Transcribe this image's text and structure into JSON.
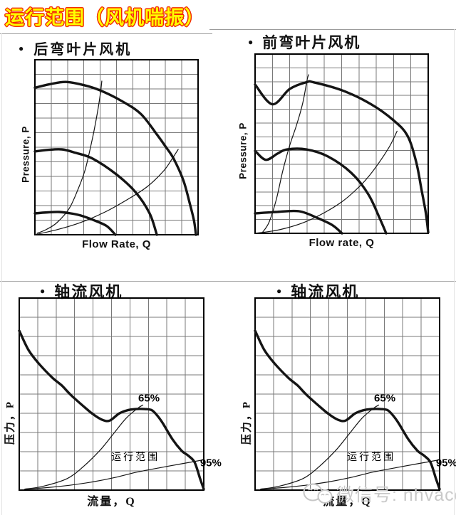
{
  "page": {
    "title": "运行范围（风机喘振）",
    "watermark": {
      "icon": "wechat-face-icon",
      "text": "微信号: nhvacd"
    }
  },
  "colors": {
    "title_fill": "#ffff00",
    "title_outline": "#f22b00",
    "curve": "#141414",
    "grid_line": "#787878",
    "watermark": "#c9c9c9",
    "divider": "#9c9c9c"
  },
  "chart_data": [
    {
      "type": "line",
      "bullet": "●",
      "title": "后弯叶片风机",
      "xlabel": "Flow Rate, Q",
      "ylabel": "Pressure, P",
      "x_range": [
        0,
        100
      ],
      "y_range": [
        0,
        100
      ],
      "grid": {
        "cols": 10,
        "rows": 12,
        "on": true
      },
      "series": [
        {
          "name": "fan-curve-high-speed",
          "stroke": "thick",
          "points": [
            [
              0,
              84
            ],
            [
              9,
              86
            ],
            [
              19,
              87.3
            ],
            [
              30,
              85.5
            ],
            [
              40,
              82.5
            ],
            [
              53,
              76.5
            ],
            [
              65,
              69
            ],
            [
              75,
              57
            ],
            [
              80,
              50.5
            ],
            [
              85,
              43.5
            ],
            [
              91,
              31
            ],
            [
              95,
              17.5
            ],
            [
              97.5,
              8
            ],
            [
              98.7,
              0
            ]
          ]
        },
        {
          "name": "fan-curve-mid-speed",
          "stroke": "thick",
          "points": [
            [
              0,
              47.6
            ],
            [
              8,
              48.5
            ],
            [
              16.5,
              48.8
            ],
            [
              25,
              46.8
            ],
            [
              35.4,
              43.5
            ],
            [
              49.8,
              34.6
            ],
            [
              61.6,
              24.4
            ],
            [
              70.3,
              12.2
            ],
            [
              74.7,
              0
            ]
          ]
        },
        {
          "name": "fan-curve-low-speed",
          "stroke": "thick",
          "points": [
            [
              0,
              12.2
            ],
            [
              8,
              12.8
            ],
            [
              14.9,
              13
            ],
            [
              22,
              12.2
            ],
            [
              28,
              11
            ],
            [
              36.7,
              8.1
            ],
            [
              44.1,
              4.9
            ],
            [
              49.3,
              0
            ]
          ]
        },
        {
          "name": "surge-line",
          "stroke": "thin",
          "points": [
            [
              1.3,
              0.8
            ],
            [
              7,
              3
            ],
            [
              13.5,
              6.9
            ],
            [
              21,
              15
            ],
            [
              26.6,
              26.4
            ],
            [
              31,
              37.8
            ],
            [
              35.4,
              55.7
            ],
            [
              38.4,
              70.3
            ],
            [
              40.2,
              81.3
            ],
            [
              41,
              87.8
            ]
          ]
        },
        {
          "name": "system-curve",
          "stroke": "thin",
          "points": [
            [
              0,
              0
            ],
            [
              14,
              3
            ],
            [
              28,
              7
            ],
            [
              43,
              13
            ],
            [
              57,
              20.3
            ],
            [
              69,
              27.6
            ],
            [
              79,
              36.6
            ],
            [
              84.5,
              44
            ],
            [
              87.8,
              48.8
            ]
          ]
        }
      ],
      "annotations": []
    },
    {
      "type": "line",
      "bullet": "●",
      "title": "前弯叶片风机",
      "xlabel": "Flow rate, Q",
      "ylabel": "Pressure, P",
      "x_range": [
        0,
        100
      ],
      "y_range": [
        0,
        100
      ],
      "grid": {
        "cols": 10,
        "rows": 13,
        "on": true
      },
      "series": [
        {
          "name": "fan-curve-high-speed",
          "stroke": "thick",
          "points": [
            [
              0,
              83
            ],
            [
              10,
              72
            ],
            [
              20,
              80.5
            ],
            [
              29.6,
              84.3
            ],
            [
              34,
              84.2
            ],
            [
              51,
              79.5
            ],
            [
              67,
              72
            ],
            [
              80,
              63
            ],
            [
              88,
              54.5
            ],
            [
              93,
              40
            ],
            [
              96,
              25
            ],
            [
              98.5,
              12
            ],
            [
              100,
              0.5
            ]
          ]
        },
        {
          "name": "fan-curve-mid-speed",
          "stroke": "thick",
          "points": [
            [
              0,
              46
            ],
            [
              6.2,
              41
            ],
            [
              13,
              44.5
            ],
            [
              18.5,
              46.8
            ],
            [
              29.6,
              46.8
            ],
            [
              42,
              42.9
            ],
            [
              55.6,
              33.7
            ],
            [
              65.4,
              21.8
            ],
            [
              72,
              8.3
            ],
            [
              75.7,
              0
            ]
          ]
        },
        {
          "name": "fan-curve-low-speed",
          "stroke": "thick",
          "points": [
            [
              0,
              11.1
            ],
            [
              12,
              11.9
            ],
            [
              25.5,
              12.3
            ],
            [
              36.6,
              8.3
            ],
            [
              44.9,
              4.4
            ],
            [
              50.2,
              0
            ]
          ]
        },
        {
          "name": "surge-line",
          "stroke": "thin",
          "points": [
            [
              4.1,
              0.3
            ],
            [
              8,
              6
            ],
            [
              12.3,
              19
            ],
            [
              16,
              34.9
            ],
            [
              20,
              49
            ],
            [
              24,
              60.5
            ],
            [
              27.5,
              72.5
            ],
            [
              30,
              85.3
            ],
            [
              30.9,
              88.5
            ]
          ]
        },
        {
          "name": "system-curve",
          "stroke": "thin",
          "points": [
            [
              0,
              0
            ],
            [
              14,
              2
            ],
            [
              28,
              6
            ],
            [
              40,
              11.5
            ],
            [
              50,
              17.5
            ],
            [
              58,
              24
            ],
            [
              65,
              31
            ],
            [
              72,
              40
            ],
            [
              78,
              49
            ],
            [
              82,
              57
            ]
          ]
        }
      ],
      "annotations": []
    },
    {
      "type": "line",
      "bullet": "●",
      "title": "轴流风机",
      "xlabel": "流量，Q",
      "ylabel": "压力，P",
      "x_range": [
        0,
        100
      ],
      "y_range": [
        0,
        100
      ],
      "grid": {
        "cols": 10,
        "rows": 10,
        "on": true
      },
      "series": [
        {
          "name": "fan-curve",
          "stroke": "thick",
          "points": [
            [
              0,
              83
            ],
            [
              5,
              73
            ],
            [
              10.5,
              66
            ],
            [
              18,
              58.5
            ],
            [
              23,
              54.5
            ],
            [
              28,
              49.5
            ],
            [
              35,
              43.5
            ],
            [
              40,
              39.5
            ],
            [
              45,
              36.6
            ],
            [
              49,
              36.2
            ],
            [
              54,
              39.8
            ],
            [
              58,
              41.4
            ],
            [
              63,
              42.2
            ],
            [
              68,
              42.2
            ],
            [
              72,
              41.5
            ],
            [
              75.5,
              38
            ],
            [
              78,
              34.5
            ],
            [
              83,
              26.5
            ],
            [
              88,
              20.5
            ],
            [
              91.5,
              18
            ],
            [
              95,
              14.5
            ],
            [
              98,
              6
            ],
            [
              100,
              0.5
            ]
          ]
        },
        {
          "name": "system-curve-65",
          "stroke": "thin",
          "points": [
            [
              3,
              0.5
            ],
            [
              13,
              2
            ],
            [
              26,
              6
            ],
            [
              35,
              12.5
            ],
            [
              44,
              21
            ],
            [
              52,
              30.5
            ],
            [
              58,
              37.5
            ],
            [
              64,
              42.5
            ],
            [
              67,
              44.3
            ]
          ]
        },
        {
          "name": "system-curve-95",
          "stroke": "thin",
          "points": [
            [
              3,
              0.5
            ],
            [
              15,
              1.3
            ],
            [
              27,
              2.5
            ],
            [
              40,
              4.3
            ],
            [
              52,
              6.6
            ],
            [
              64,
              9.4
            ],
            [
              76,
              11.6
            ],
            [
              88,
              13.7
            ],
            [
              99,
              15.6
            ]
          ]
        }
      ],
      "annotations": [
        {
          "text": "65%",
          "x": 64.5,
          "y": 46.2,
          "anchor": "start",
          "cls": "pct"
        },
        {
          "text": "95%",
          "x": 98,
          "y": 12.4,
          "anchor": "start",
          "cls": "pct"
        },
        {
          "text": "运行范围",
          "x": 63,
          "y": 15.6,
          "anchor": "middle",
          "cls": "range"
        }
      ]
    },
    {
      "type": "line",
      "bullet": "●",
      "title": "轴流风机",
      "xlabel": "流量，Q",
      "ylabel": "压力，P",
      "x_range": [
        0,
        100
      ],
      "y_range": [
        0,
        100
      ],
      "grid": {
        "cols": 10,
        "rows": 10,
        "on": true
      },
      "series": [
        {
          "name": "fan-curve",
          "stroke": "thick",
          "points": [
            [
              0,
              83
            ],
            [
              5,
              73
            ],
            [
              10.5,
              66
            ],
            [
              18,
              58.5
            ],
            [
              23,
              54.5
            ],
            [
              28,
              49.5
            ],
            [
              35,
              43.5
            ],
            [
              40,
              39.5
            ],
            [
              45,
              36.6
            ],
            [
              49,
              36.2
            ],
            [
              54,
              39.8
            ],
            [
              58,
              41.4
            ],
            [
              63,
              42.2
            ],
            [
              68,
              42.2
            ],
            [
              72,
              41.5
            ],
            [
              75.5,
              38
            ],
            [
              78,
              34.5
            ],
            [
              83,
              26.5
            ],
            [
              88,
              20.5
            ],
            [
              91.5,
              18
            ],
            [
              95,
              14.5
            ],
            [
              98,
              6
            ],
            [
              100,
              0.5
            ]
          ]
        },
        {
          "name": "system-curve-65",
          "stroke": "thin",
          "points": [
            [
              3,
              0.5
            ],
            [
              13,
              2
            ],
            [
              26,
              6
            ],
            [
              35,
              12.5
            ],
            [
              44,
              21
            ],
            [
              52,
              30.5
            ],
            [
              58,
              37.5
            ],
            [
              64,
              42.5
            ],
            [
              67,
              44.3
            ]
          ]
        },
        {
          "name": "system-curve-95",
          "stroke": "thin",
          "points": [
            [
              3,
              0.5
            ],
            [
              15,
              1.3
            ],
            [
              27,
              2.5
            ],
            [
              40,
              4.3
            ],
            [
              52,
              6.6
            ],
            [
              64,
              9.4
            ],
            [
              76,
              11.6
            ],
            [
              88,
              13.7
            ],
            [
              99,
              15.6
            ]
          ]
        }
      ],
      "annotations": [
        {
          "text": "65%",
          "x": 64.5,
          "y": 46.2,
          "anchor": "start",
          "cls": "pct"
        },
        {
          "text": "95%",
          "x": 98,
          "y": 12.4,
          "anchor": "start",
          "cls": "pct"
        },
        {
          "text": "运行范围",
          "x": 63,
          "y": 15.6,
          "anchor": "middle",
          "cls": "range"
        }
      ]
    }
  ]
}
